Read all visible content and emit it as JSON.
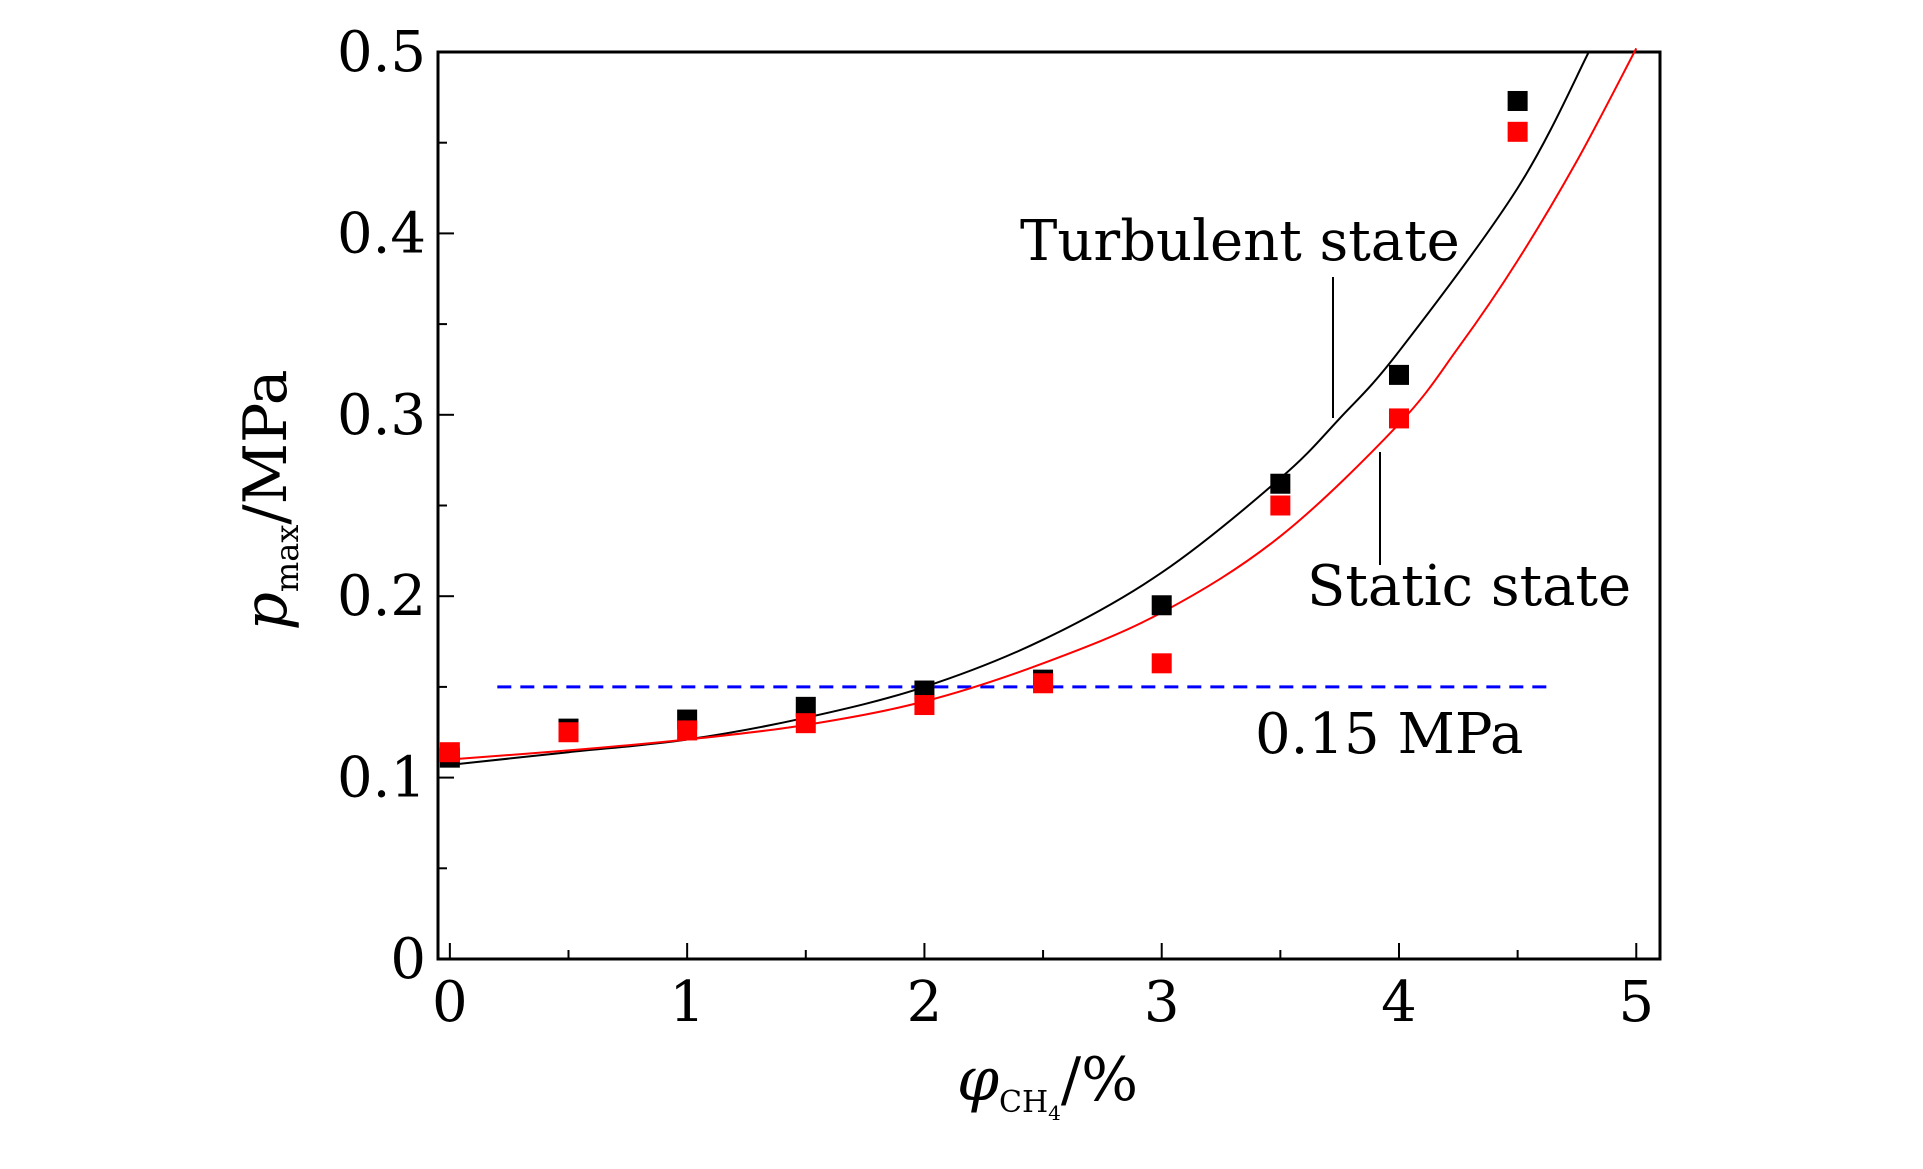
{
  "chart_data": {
    "type": "scatter",
    "xlabel": {
      "symbol": "φ",
      "subscript_main": "CH",
      "subscript_sub": "4",
      "unit": "/%"
    },
    "ylabel": {
      "symbol": "p",
      "subscript": "max",
      "unit": "/MPa"
    },
    "xlim": [
      -0.05,
      5.1
    ],
    "ylim": [
      0,
      0.5
    ],
    "x_ticks": [
      "0",
      "1",
      "2",
      "3",
      "4",
      "5"
    ],
    "y_ticks": [
      "0",
      "0.1",
      "0.2",
      "0.3",
      "0.4",
      "0.5"
    ],
    "grid": false,
    "series": [
      {
        "name": "Turbulent state",
        "color": "#000000",
        "marker": "square",
        "x": [
          0,
          0.5,
          1.0,
          1.5,
          2.0,
          2.5,
          3.0,
          3.5,
          4.0,
          4.5
        ],
        "y": [
          0.111,
          0.127,
          0.132,
          0.139,
          0.148,
          0.154,
          0.195,
          0.262,
          0.322,
          0.473
        ],
        "fit_curve": {
          "x": [
            0,
            0.5,
            1.0,
            1.5,
            2.0,
            2.5,
            3.0,
            3.5,
            3.75,
            4.0,
            4.5,
            4.8
          ],
          "y": [
            0.107,
            0.114,
            0.121,
            0.133,
            0.15,
            0.176,
            0.213,
            0.265,
            0.298,
            0.335,
            0.425,
            0.5
          ]
        }
      },
      {
        "name": "Static state",
        "color": "#ff0000",
        "marker": "square",
        "x": [
          0,
          0.5,
          1.0,
          1.5,
          2.0,
          2.5,
          3.0,
          3.5,
          4.0,
          4.5
        ],
        "y": [
          0.114,
          0.125,
          0.126,
          0.13,
          0.14,
          0.152,
          0.163,
          0.25,
          0.298,
          0.456
        ],
        "fit_curve": {
          "x": [
            0,
            0.5,
            1.0,
            1.5,
            2.0,
            2.5,
            3.0,
            3.5,
            4.0,
            4.25,
            4.5,
            4.75,
            5.0
          ],
          "y": [
            0.11,
            0.115,
            0.121,
            0.129,
            0.142,
            0.163,
            0.191,
            0.233,
            0.295,
            0.337,
            0.385,
            0.44,
            0.502
          ]
        }
      }
    ],
    "reference_line": {
      "y": 0.15,
      "x_range": [
        0.2,
        4.65
      ],
      "color": "#0000ff",
      "style": "dashed",
      "label": "0.15 MPa"
    },
    "annotations": [
      {
        "text": "Turbulent state",
        "series": 0
      },
      {
        "text": "Static state",
        "series": 1
      }
    ]
  }
}
